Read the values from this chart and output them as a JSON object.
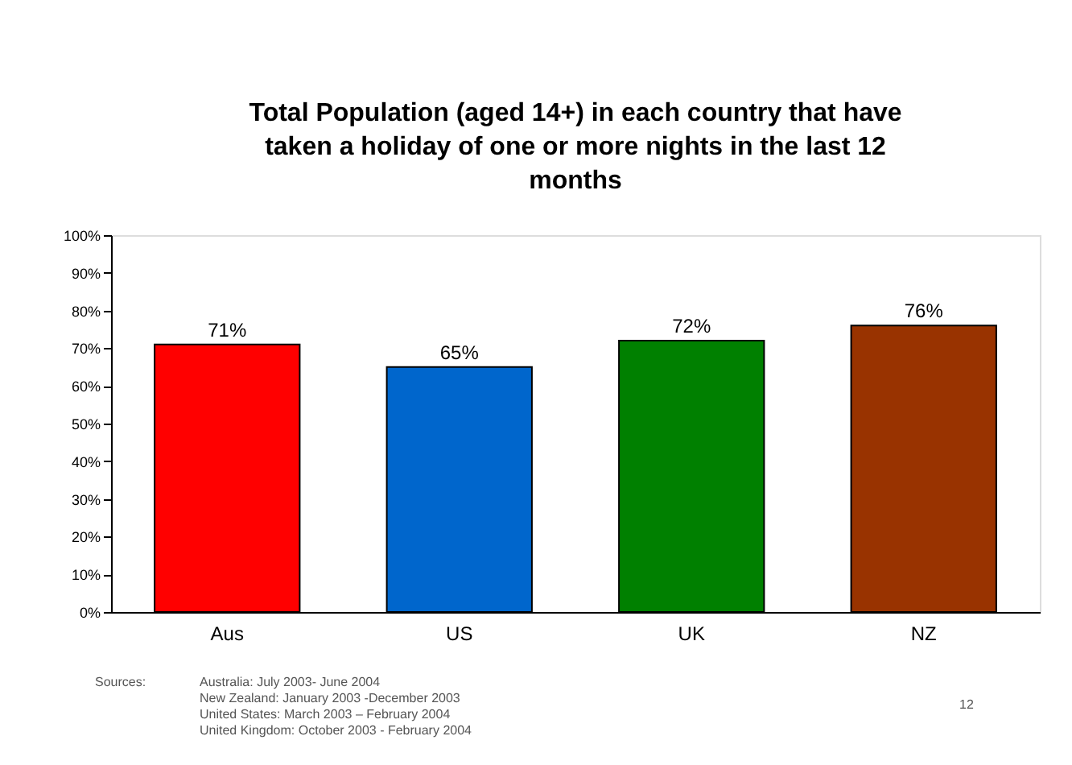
{
  "chart_data": {
    "type": "bar",
    "title": "Total Population (aged 14+) in each country that have taken a holiday of one or more nights in the last 12 months",
    "categories": [
      "Aus",
      "US",
      "UK",
      "NZ"
    ],
    "values": [
      71,
      65,
      72,
      76
    ],
    "colors": [
      "#ff0000",
      "#0066cc",
      "#008000",
      "#993300"
    ],
    "ylim": [
      0,
      100
    ],
    "yticks": [
      {
        "value": 0,
        "label": "0%"
      },
      {
        "value": 10,
        "label": "10%"
      },
      {
        "value": 20,
        "label": "20%"
      },
      {
        "value": 30,
        "label": "30%"
      },
      {
        "value": 40,
        "label": "40%"
      },
      {
        "value": 50,
        "label": "50%"
      },
      {
        "value": 60,
        "label": "60%"
      },
      {
        "value": 70,
        "label": "70%"
      },
      {
        "value": 80,
        "label": "80%"
      },
      {
        "value": 90,
        "label": "90%"
      },
      {
        "value": 100,
        "label": "100%"
      }
    ],
    "value_labels": [
      "71%",
      "65%",
      "72%",
      "76%"
    ],
    "grid": false,
    "legend": false,
    "annotations": [
      "Sources:",
      "Australia: July 2003- June 2004\nNew Zealand: January 2003 -December 2003\nUnited States: March 2003 – February 2004\nUnited Kingdom: October 2003 - February 2004",
      "12"
    ]
  }
}
